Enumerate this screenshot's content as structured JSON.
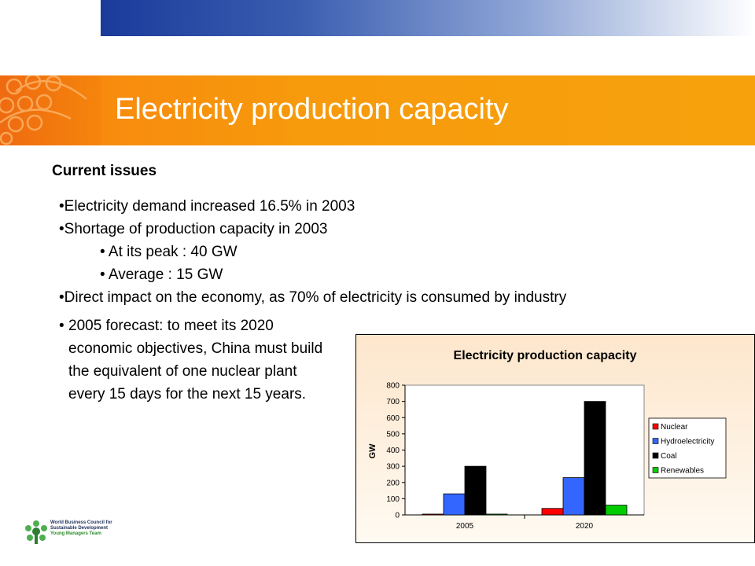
{
  "slide": {
    "title": "Electricity production capacity",
    "section_heading": "Current issues",
    "bullets": [
      {
        "marker": "•",
        "text": "Electricity demand increased 16.5% in 2003"
      },
      {
        "marker": "•",
        "text": "Shortage of production capacity in 2003"
      },
      {
        "marker": "•",
        "text": "At its peak : 40 GW",
        "sub": true
      },
      {
        "marker": "•",
        "text": "Average : 15 GW",
        "sub": true
      },
      {
        "marker": "•",
        "text": "Direct impact on the economy, as 70% of electricity is consumed by industry"
      }
    ],
    "forecast": {
      "marker": "•",
      "text": "2005 forecast: to meet its 2020 economic objectives, China must build the equivalent of one nuclear plant every 15 days for the next 15 years."
    }
  },
  "footer": {
    "org_line1": "World Business Council for",
    "org_line2": "Sustainable Development",
    "org_line3": "Young Managers Team"
  },
  "colors": {
    "accent_orange": "#f7941d",
    "brand_blue": "#1a3b9a"
  },
  "chart_data": {
    "type": "bar",
    "title": "Electricity production capacity",
    "ylabel": "GW",
    "xlabel": "",
    "categories": [
      "2005",
      "2020"
    ],
    "ylim": [
      0,
      800
    ],
    "yticks": [
      0,
      100,
      200,
      300,
      400,
      500,
      600,
      700,
      800
    ],
    "legend_position": "right",
    "grid": false,
    "series": [
      {
        "name": "Nuclear",
        "color": "#ff0000",
        "values": [
          5,
          40
        ]
      },
      {
        "name": "Hydroelectricity",
        "color": "#3366ff",
        "values": [
          130,
          230
        ]
      },
      {
        "name": "Coal",
        "color": "#000000",
        "values": [
          300,
          700
        ]
      },
      {
        "name": "Renewables",
        "color": "#00cc00",
        "values": [
          5,
          60
        ]
      }
    ]
  }
}
